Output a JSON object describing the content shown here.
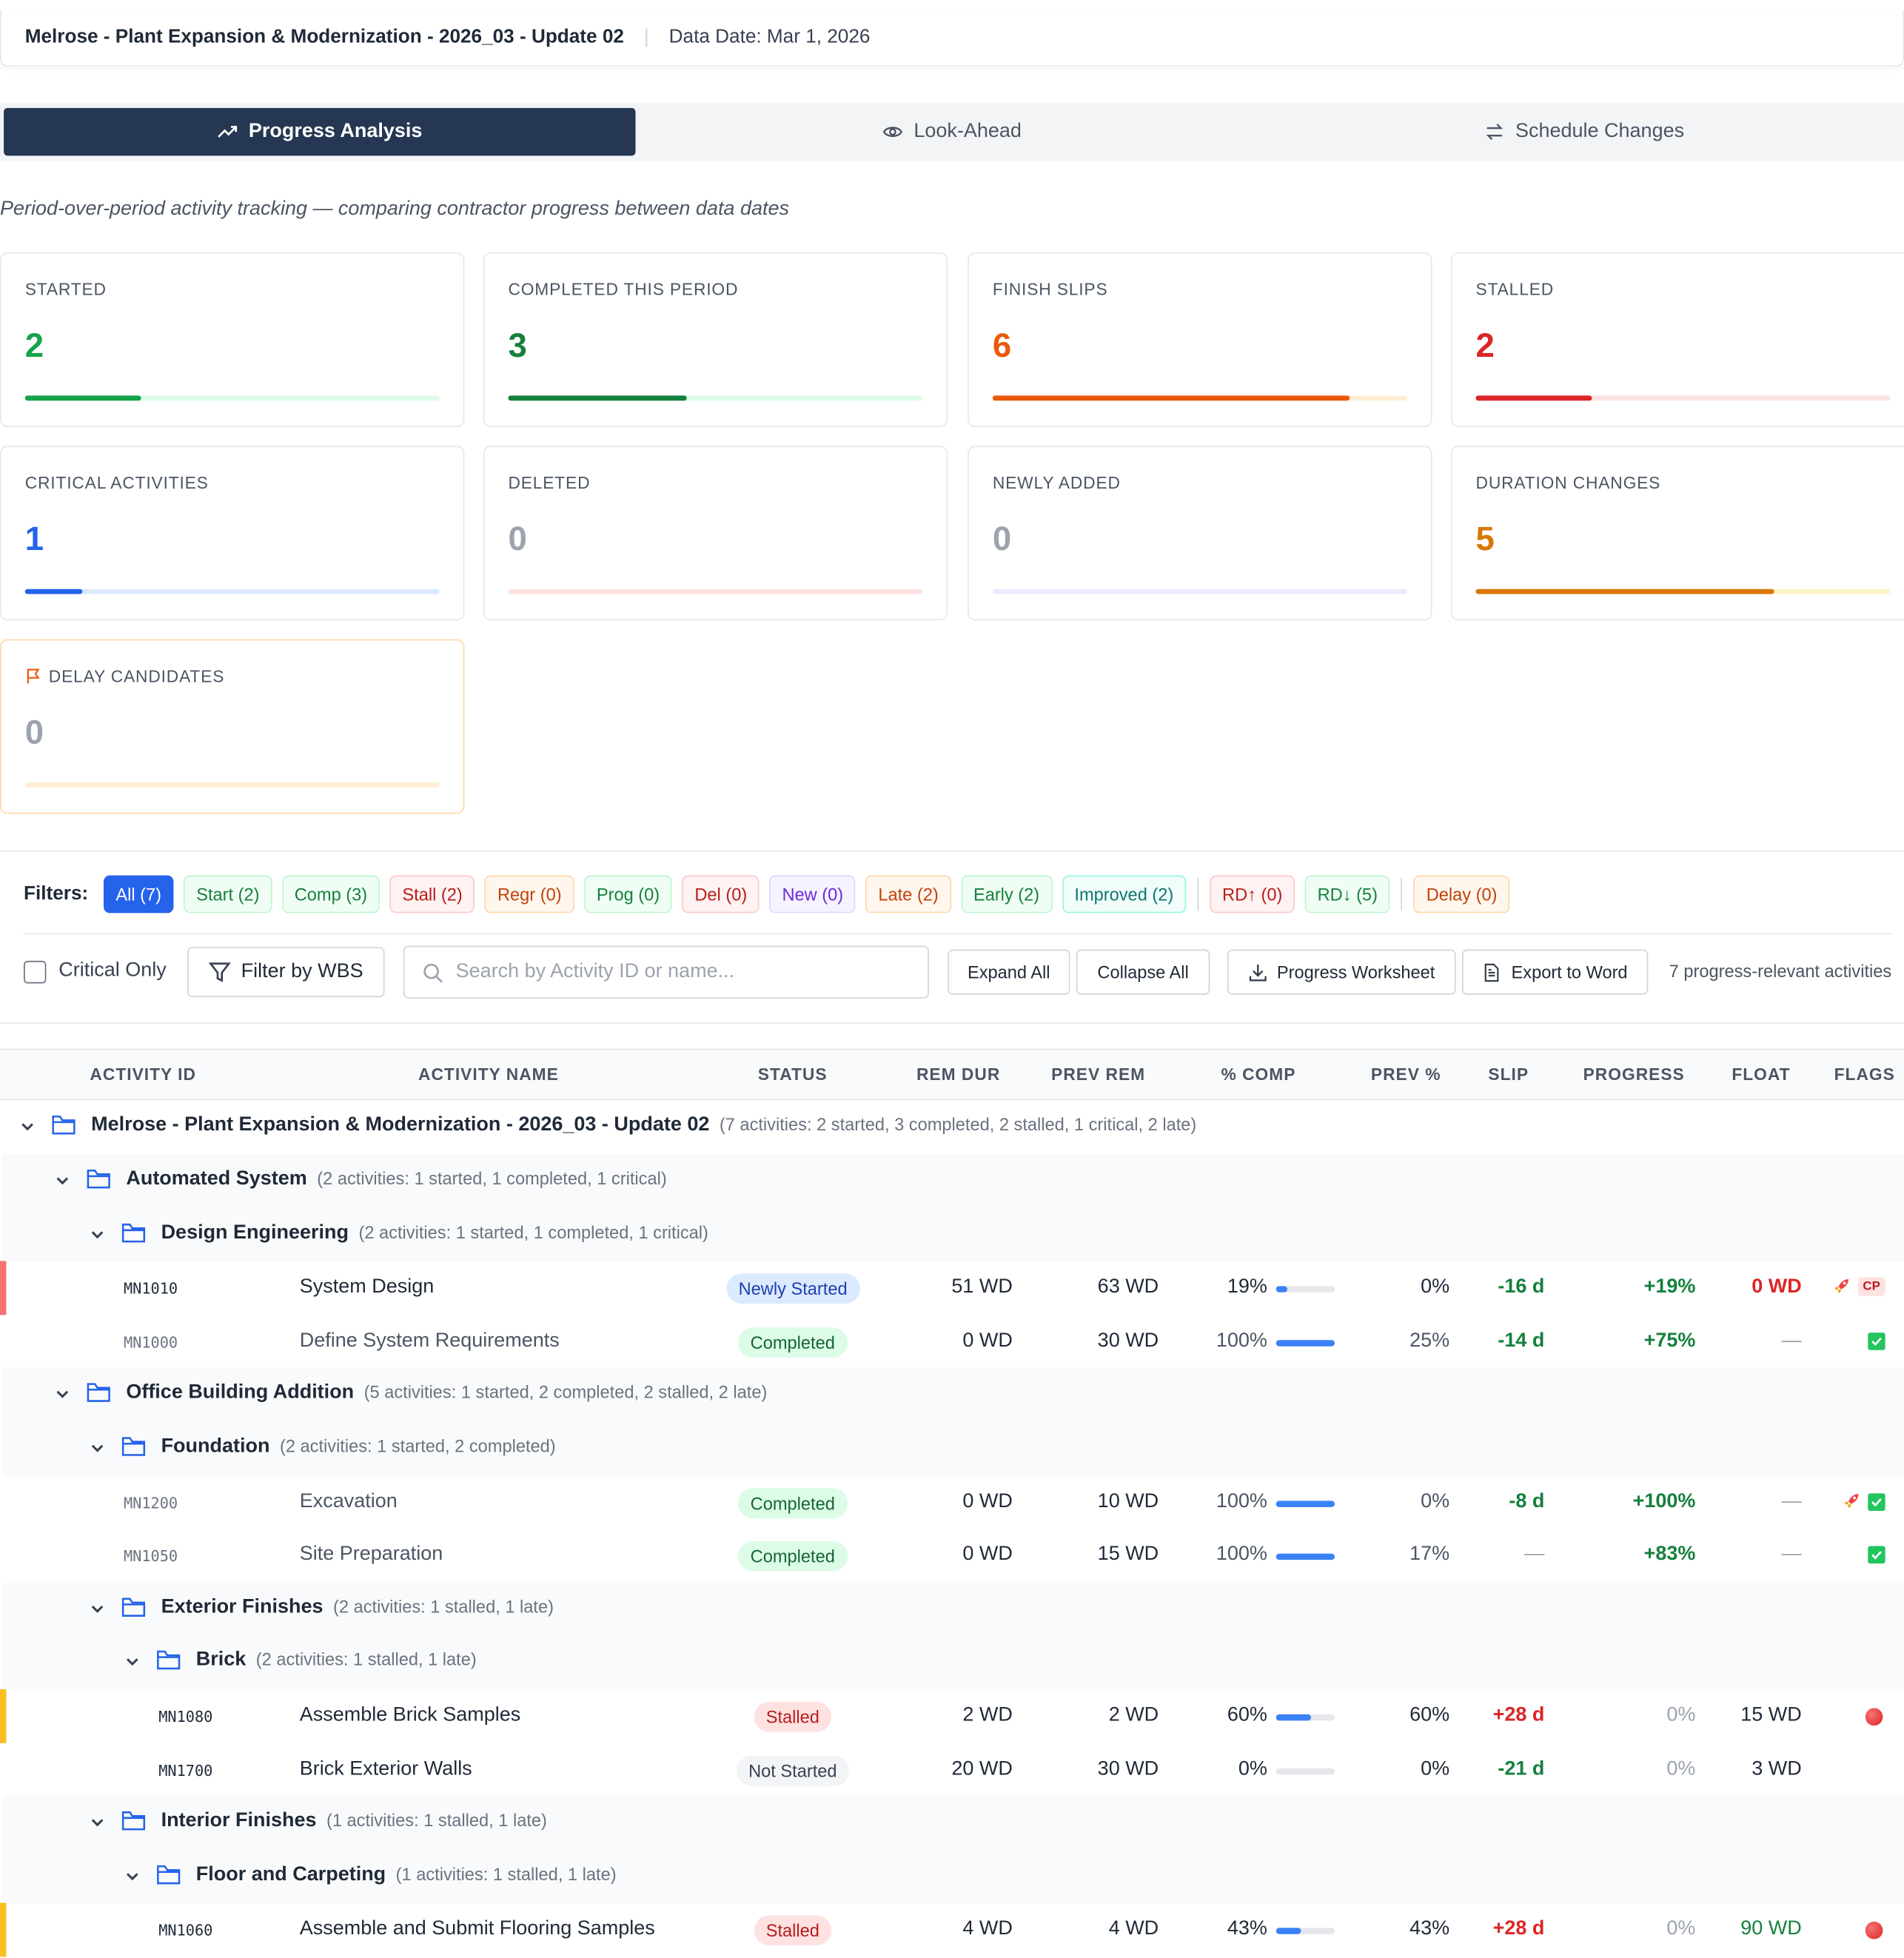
{
  "header": {
    "project": "Melrose - Plant Expansion & Modernization - 2026_03 - Update 02",
    "data_date": "Data Date: Mar 1, 2026"
  },
  "tabs": [
    {
      "label": "Progress Analysis",
      "icon": "trend-up-icon"
    },
    {
      "label": "Look-Ahead",
      "icon": "eye-icon"
    },
    {
      "label": "Schedule Changes",
      "icon": "arrows-swap-icon"
    }
  ],
  "subtitle": "Period-over-period activity tracking — comparing contractor progress between data dates",
  "cards": [
    {
      "label": "STARTED",
      "value": "2",
      "color": "#16a34a",
      "track": "#dcfce7",
      "fill": 0.28
    },
    {
      "label": "COMPLETED THIS PERIOD",
      "value": "3",
      "color": "#15803d",
      "track": "#dcfce7",
      "fill": 0.43
    },
    {
      "label": "FINISH SLIPS",
      "value": "6",
      "color": "#ea580c",
      "track": "#ffedd5",
      "fill": 0.86
    },
    {
      "label": "STALLED",
      "value": "2",
      "color": "#dc2626",
      "track": "#fee2e2",
      "fill": 0.28
    },
    {
      "label": "CRITICAL ACTIVITIES",
      "value": "1",
      "color": "#2563eb",
      "track": "#dbeafe",
      "fill": 0.14
    },
    {
      "label": "DELETED",
      "value": "0",
      "color": "#9ca3af",
      "track": "#fee2e2",
      "fill": 0
    },
    {
      "label": "NEWLY ADDED",
      "value": "0",
      "color": "#9ca3af",
      "track": "#ede9fe",
      "fill": 0
    },
    {
      "label": "DURATION CHANGES",
      "value": "5",
      "color": "#d97706",
      "track": "#fef3c7",
      "fill": 0.72
    },
    {
      "label": "DELAY CANDIDATES",
      "value": "0",
      "color": "#9ca3af",
      "track": "#ffedd5",
      "fill": 0
    }
  ],
  "filters": {
    "label": "Filters:",
    "chips": [
      {
        "label": "All (7)",
        "color": "#2563eb",
        "bg": "#2563eb",
        "active": true
      },
      {
        "label": "Start (2)",
        "color": "#15803d",
        "bg": "#f0fdf4",
        "border": "#bbf7d0"
      },
      {
        "label": "Comp (3)",
        "color": "#15803d",
        "bg": "#f0fdf4",
        "border": "#bbf7d0"
      },
      {
        "label": "Stall (2)",
        "color": "#b91c1c",
        "bg": "#fef2f2",
        "border": "#fecaca"
      },
      {
        "label": "Regr (0)",
        "color": "#c2410c",
        "bg": "#fff7ed",
        "border": "#fed7aa"
      },
      {
        "label": "Prog (0)",
        "color": "#15803d",
        "bg": "#f0fdf4",
        "border": "#bbf7d0"
      },
      {
        "label": "Del (0)",
        "color": "#b91c1c",
        "bg": "#fef2f2",
        "border": "#fecaca"
      },
      {
        "label": "New (0)",
        "color": "#6d28d9",
        "bg": "#f5f3ff",
        "border": "#ddd6fe"
      },
      {
        "label": "Late (2)",
        "color": "#c2410c",
        "bg": "#fff7ed",
        "border": "#fed7aa"
      },
      {
        "label": "Early (2)",
        "color": "#15803d",
        "bg": "#f0fdf4",
        "border": "#bbf7d0"
      },
      {
        "label": "Improved (2)",
        "color": "#0f766e",
        "bg": "#f0fdfa",
        "border": "#99f6e4"
      },
      {
        "sep": true
      },
      {
        "label": "RD↑ (0)",
        "color": "#b91c1c",
        "bg": "#fef2f2",
        "border": "#fecaca"
      },
      {
        "label": "RD↓ (5)",
        "color": "#15803d",
        "bg": "#f0fdf4",
        "border": "#bbf7d0"
      },
      {
        "sep": true
      },
      {
        "label": "Delay (0)",
        "color": "#c2410c",
        "bg": "#fff7ed",
        "border": "#fed7aa"
      }
    ]
  },
  "toolbar": {
    "critical_only": "Critical Only",
    "filter_wbs": "Filter by WBS",
    "search_placeholder": "Search by Activity ID or name...",
    "expand_all": "Expand All",
    "collapse_all": "Collapse All",
    "progress_worksheet": "Progress Worksheet",
    "export_word": "Export to Word",
    "count": "7 progress-relevant activities"
  },
  "table": {
    "columns": [
      "ACTIVITY ID",
      "ACTIVITY NAME",
      "STATUS",
      "REM DUR",
      "PREV REM",
      "% COMP",
      "PREV %",
      "SLIP",
      "PROGRESS",
      "FLOAT",
      "FLAGS"
    ],
    "rows": [
      {
        "type": "group",
        "level": 0,
        "name": "Melrose - Plant Expansion & Modernization - 2026_03 - Update 02",
        "summary": "(7 activities: 2 started, 3 completed, 2 stalled, 1 critical, 2 late)"
      },
      {
        "type": "group",
        "level": 1,
        "name": "Automated System",
        "summary": "(2 activities: 1 started, 1 completed, 1 critical)"
      },
      {
        "type": "group",
        "level": 2,
        "name": "Design Engineering",
        "summary": "(2 activities: 1 started, 1 completed, 1 critical)"
      },
      {
        "type": "act",
        "id": "MN1010",
        "name": "System Design",
        "status": "Newly Started",
        "status_style": "started",
        "rem": "51 WD",
        "prev_rem": "63 WD",
        "pct": "19%",
        "pct_val": 0.19,
        "prev_pct": "0%",
        "slip": "-16 d",
        "slip_style": "green",
        "progress": "+19%",
        "progress_style": "green",
        "float": "0 WD",
        "float_style": "red",
        "flags": [
          "rocket",
          "cp"
        ],
        "marker": "#f87171",
        "dim": false
      },
      {
        "type": "act",
        "id": "MN1000",
        "name": "Define System Requirements",
        "status": "Completed",
        "status_style": "completed",
        "rem": "0 WD",
        "prev_rem": "30 WD",
        "pct": "100%",
        "pct_val": 1,
        "prev_pct": "25%",
        "slip": "-14 d",
        "slip_style": "green",
        "progress": "+75%",
        "progress_style": "green",
        "float": "—",
        "float_style": "dash",
        "flags": [
          "check"
        ],
        "dim": true
      },
      {
        "type": "group",
        "level": 1,
        "name": "Office Building Addition",
        "summary": "(5 activities: 1 started, 2 completed, 2 stalled, 2 late)"
      },
      {
        "type": "group",
        "level": 2,
        "name": "Foundation",
        "summary": "(2 activities: 1 started, 2 completed)"
      },
      {
        "type": "act",
        "id": "MN1200",
        "name": "Excavation",
        "status": "Completed",
        "status_style": "completed",
        "rem": "0 WD",
        "prev_rem": "10 WD",
        "pct": "100%",
        "pct_val": 1,
        "prev_pct": "0%",
        "slip": "-8 d",
        "slip_style": "green",
        "progress": "+100%",
        "progress_style": "green",
        "float": "—",
        "float_style": "dash",
        "flags": [
          "rocket",
          "check"
        ],
        "dim": true
      },
      {
        "type": "act",
        "id": "MN1050",
        "name": "Site Preparation",
        "status": "Completed",
        "status_style": "completed",
        "rem": "0 WD",
        "prev_rem": "15 WD",
        "pct": "100%",
        "pct_val": 1,
        "prev_pct": "17%",
        "slip": "—",
        "slip_style": "dash",
        "progress": "+83%",
        "progress_style": "green",
        "float": "—",
        "float_style": "dash",
        "flags": [
          "check"
        ],
        "dim": true
      },
      {
        "type": "group",
        "level": 2,
        "name": "Exterior Finishes",
        "summary": "(2 activities: 1 stalled, 1 late)"
      },
      {
        "type": "group",
        "level": 3,
        "name": "Brick",
        "summary": "(2 activities: 1 stalled, 1 late)"
      },
      {
        "type": "act",
        "id": "MN1080",
        "name": "Assemble Brick Samples",
        "status": "Stalled",
        "status_style": "stalled",
        "rem": "2 WD",
        "prev_rem": "2 WD",
        "pct": "60%",
        "pct_val": 0.6,
        "prev_pct": "60%",
        "slip": "+28 d",
        "slip_style": "red",
        "progress": "0%",
        "progress_style": "muted",
        "float": "15 WD",
        "float_style": "plain",
        "flags": [
          "dot"
        ],
        "marker": "#fbbf24",
        "dim": false
      },
      {
        "type": "act",
        "id": "MN1700",
        "name": "Brick Exterior Walls",
        "status": "Not Started",
        "status_style": "notstarted",
        "rem": "20 WD",
        "prev_rem": "30 WD",
        "pct": "0%",
        "pct_val": 0,
        "prev_pct": "0%",
        "slip": "-21 d",
        "slip_style": "green",
        "progress": "0%",
        "progress_style": "muted",
        "float": "3 WD",
        "float_style": "plain",
        "flags": [],
        "dim": false
      },
      {
        "type": "group",
        "level": 2,
        "name": "Interior Finishes",
        "summary": "(1 activities: 1 stalled, 1 late)"
      },
      {
        "type": "group",
        "level": 3,
        "name": "Floor and Carpeting",
        "summary": "(1 activities: 1 stalled, 1 late)"
      },
      {
        "type": "act",
        "id": "MN1060",
        "name": "Assemble and Submit Flooring Samples",
        "status": "Stalled",
        "status_style": "stalled",
        "rem": "4 WD",
        "prev_rem": "4 WD",
        "pct": "43%",
        "pct_val": 0.43,
        "prev_pct": "43%",
        "slip": "+28 d",
        "slip_style": "red",
        "progress": "0%",
        "progress_style": "muted",
        "float": "90 WD",
        "float_style": "greenplain",
        "flags": [
          "dot"
        ],
        "marker": "#fbbf24",
        "dim": false
      }
    ]
  }
}
